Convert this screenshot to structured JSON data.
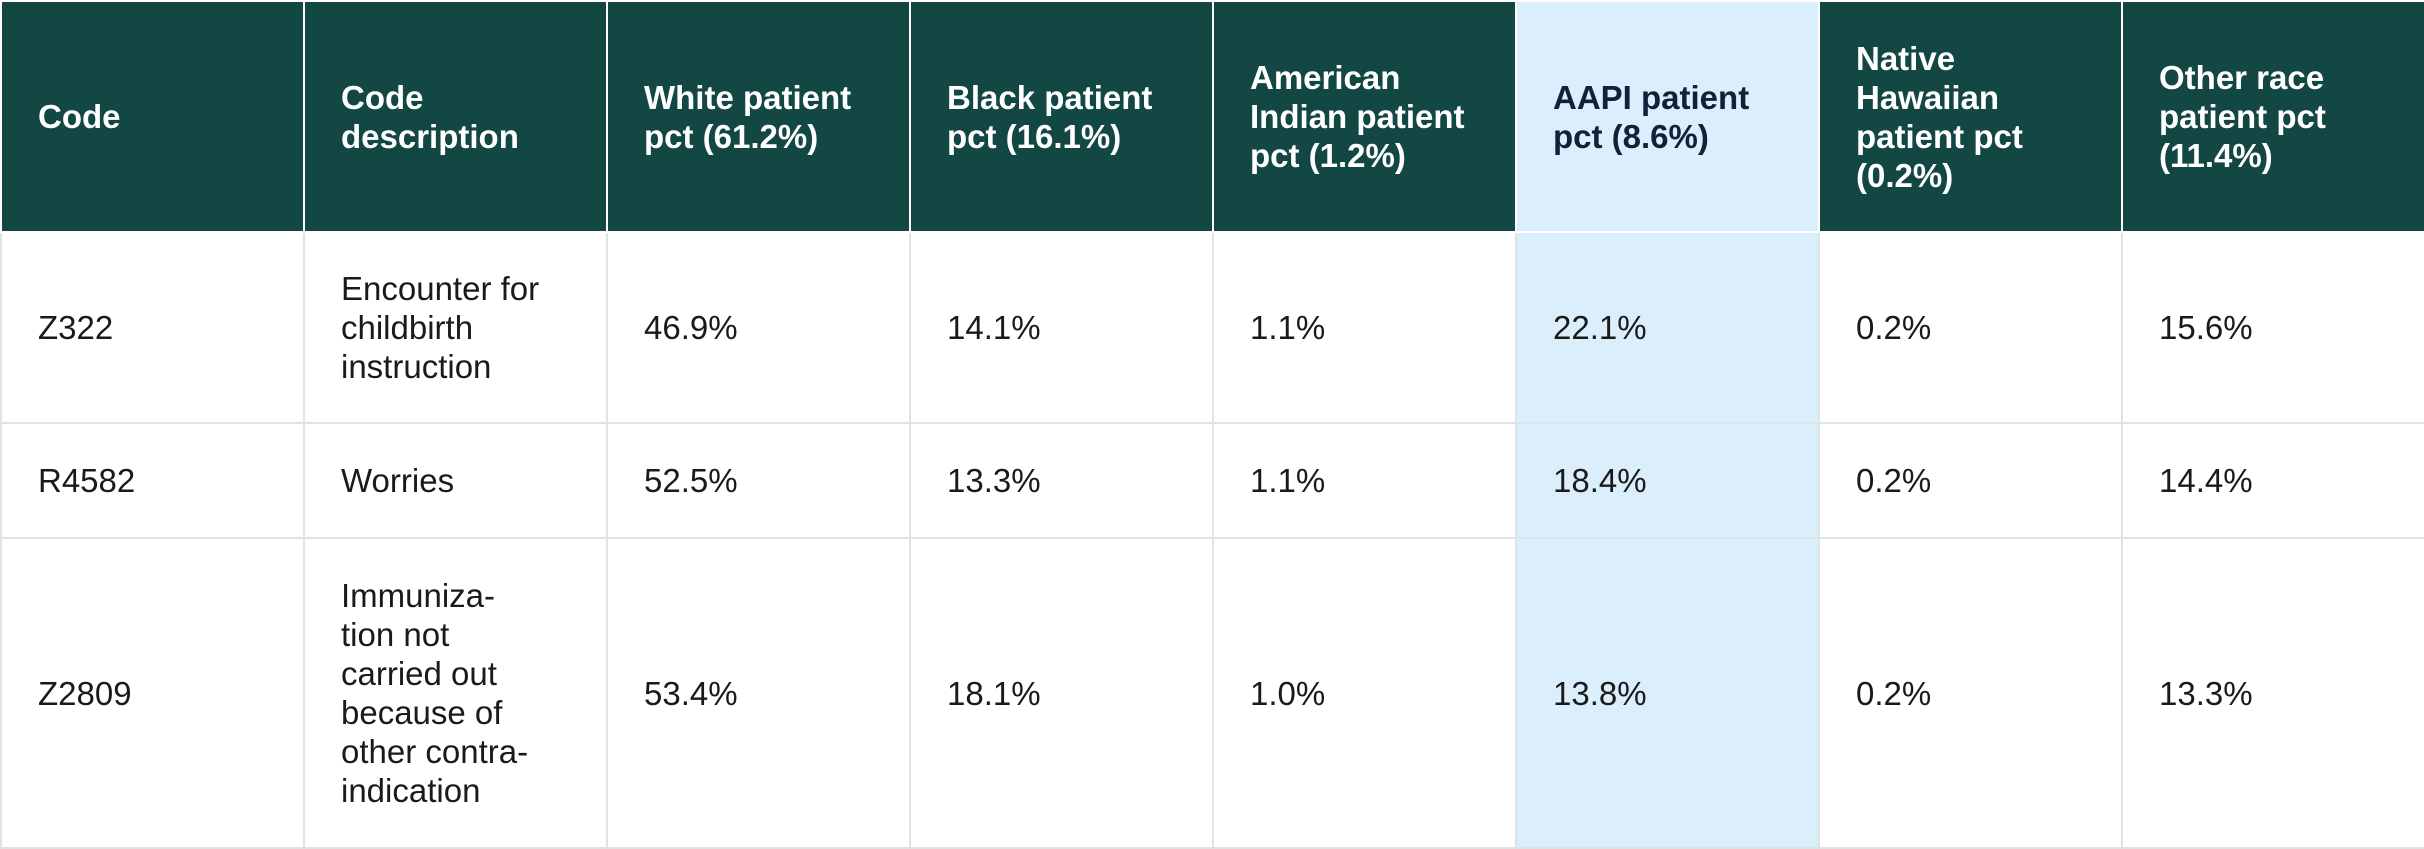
{
  "chart_data": {
    "type": "table",
    "columns": [
      "Code",
      "Code description",
      "White patient pct (61.2%)",
      "Black patient pct (16.1%)",
      "American Indian patient pct (1.2%)",
      "AAPI patient pct (8.6%)",
      "Native Hawaiian patient pct (0.2%)",
      "Other race patient pct (11.4%)"
    ],
    "highlighted_column": "AAPI patient pct (8.6%)",
    "rows": [
      {
        "code": "Z322",
        "description": "Encounter for\nchildbirth\ninstruction",
        "white": "46.9%",
        "black": "14.1%",
        "american_indian": "1.1%",
        "aapi": "22.1%",
        "native_hawaiian": "0.2%",
        "other": "15.6%"
      },
      {
        "code": "R4582",
        "description": "Worries",
        "white": "52.5%",
        "black": "13.3%",
        "american_indian": "1.1%",
        "aapi": "18.4%",
        "native_hawaiian": "0.2%",
        "other": "14.4%"
      },
      {
        "code": "Z2809",
        "description": "Immuniza-\ntion not\ncarried out\nbecause of\nother contra-\nindication",
        "white": "53.4%",
        "black": "18.1%",
        "american_indian": "1.0%",
        "aapi": "13.8%",
        "native_hawaiian": "0.2%",
        "other": "13.3%"
      }
    ]
  },
  "colors": {
    "header_bg": "#134744",
    "header_text": "#ffffff",
    "highlight_bg": "#dbeefc",
    "grid_line": "#dfe3e2"
  }
}
